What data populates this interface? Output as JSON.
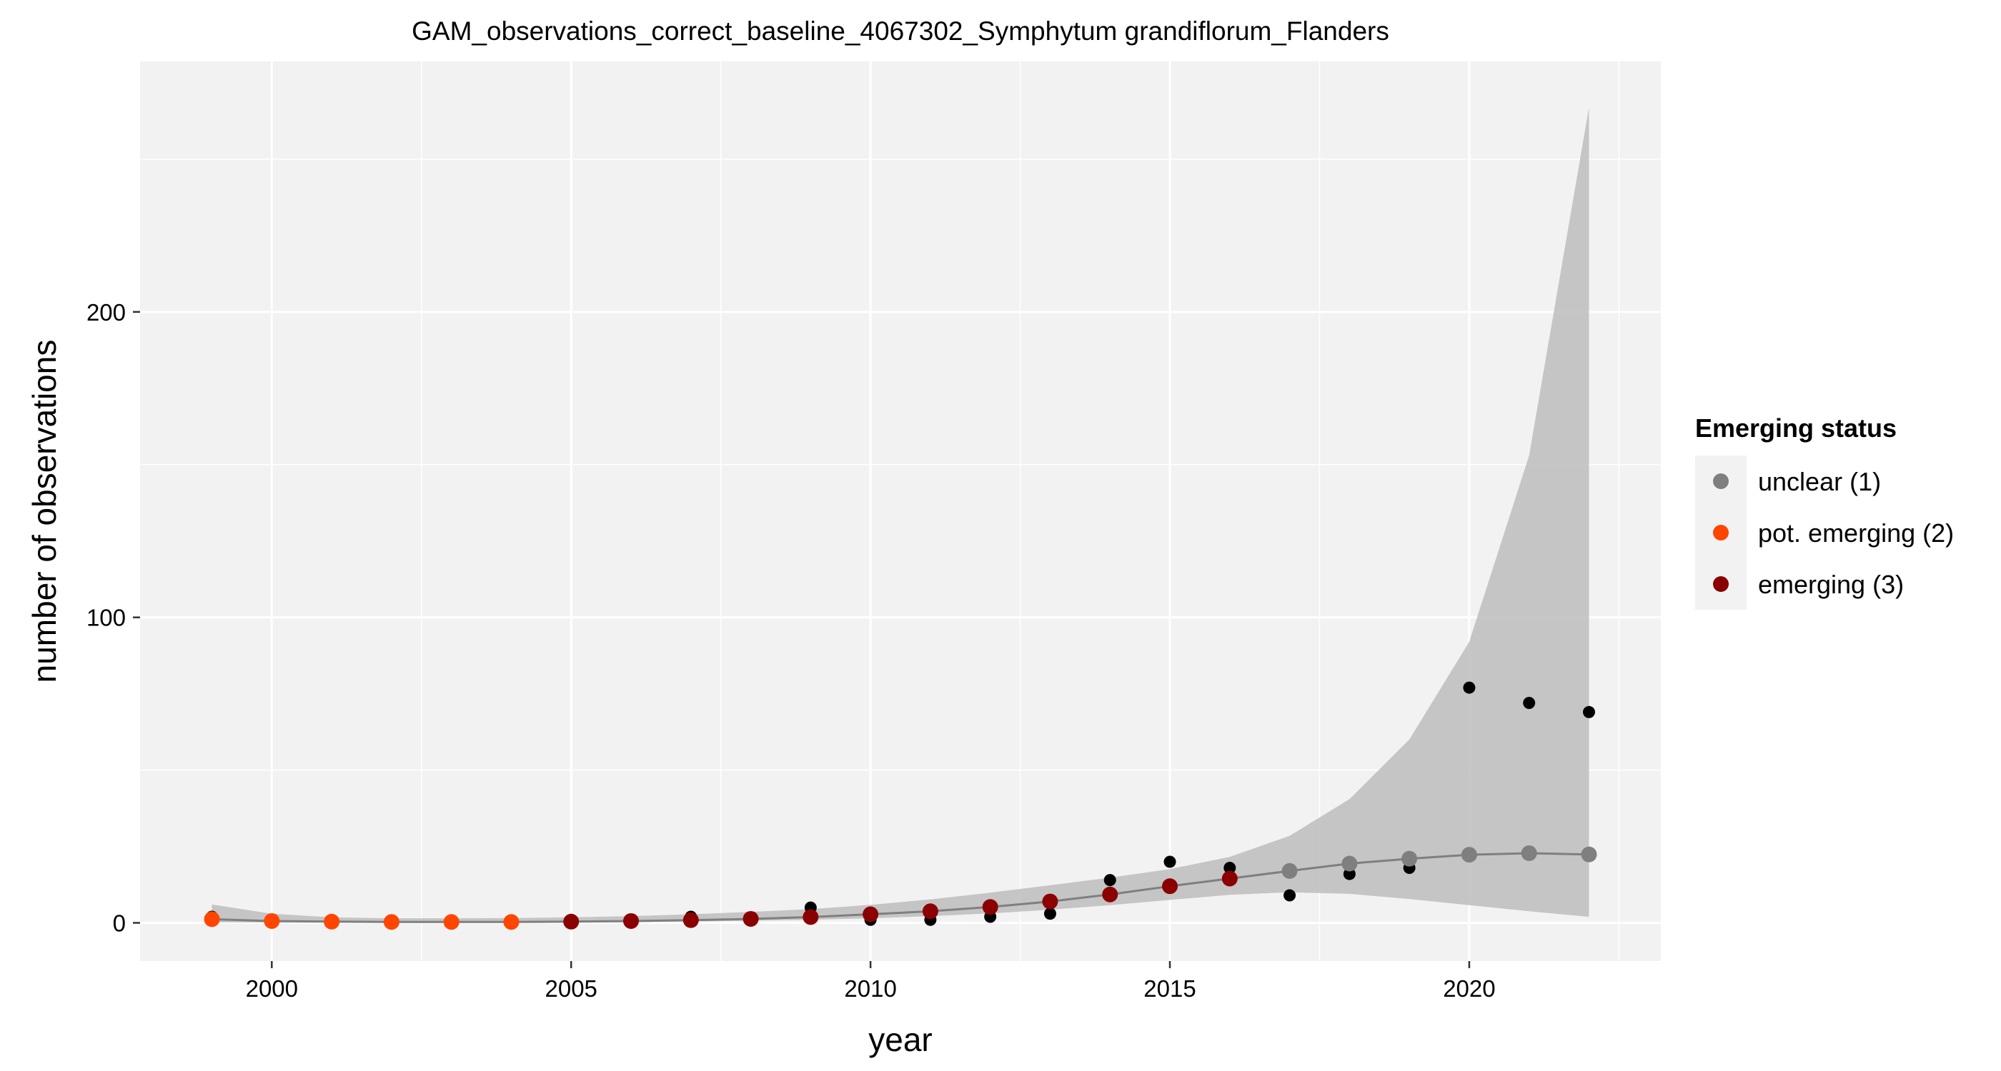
{
  "chart_data": {
    "type": "scatter",
    "title": "GAM_observations_correct_baseline_4067302_Symphytum grandiflorum_Flanders",
    "xlabel": "year",
    "ylabel": "number of observations",
    "xlim": [
      1997.8,
      2023.2
    ],
    "ylim": [
      -12.5,
      282
    ],
    "x_ticks": [
      2000,
      2005,
      2010,
      2015,
      2020
    ],
    "y_ticks": [
      0,
      100,
      200
    ],
    "grid": true,
    "legend": {
      "title": "Emerging status",
      "position": "right",
      "entries": [
        {
          "label": "unclear (1)",
          "color": "#7f7f7f"
        },
        {
          "label": "pot. emerging (2)",
          "color": "#ff4500"
        },
        {
          "label": "emerging (3)",
          "color": "#8b0000"
        }
      ]
    },
    "colors": {
      "panel": "#f2f2f2",
      "grid": "#ffffff",
      "ribbon": "#bdbdbd",
      "fit_line": "#7f7f7f",
      "observed": "#000000"
    },
    "observed": {
      "x": [
        1999,
        2000,
        2001,
        2002,
        2003,
        2004,
        2005,
        2006,
        2007,
        2008,
        2009,
        2010,
        2011,
        2012,
        2013,
        2014,
        2015,
        2016,
        2017,
        2018,
        2019,
        2020,
        2021,
        2022
      ],
      "y": [
        2,
        1,
        0,
        0,
        0,
        0,
        0,
        1,
        2,
        1,
        5,
        1,
        1,
        2,
        3,
        14,
        20,
        18,
        9,
        16,
        18,
        77,
        72,
        69
      ]
    },
    "fit": {
      "x": [
        1999,
        2000,
        2001,
        2002,
        2003,
        2004,
        2005,
        2006,
        2007,
        2008,
        2009,
        2010,
        2011,
        2012,
        2013,
        2014,
        2015,
        2016,
        2017,
        2018,
        2019,
        2020,
        2021,
        2022
      ],
      "y": [
        1.2,
        0.6,
        0.4,
        0.3,
        0.3,
        0.3,
        0.4,
        0.6,
        0.9,
        1.3,
        1.9,
        2.8,
        3.8,
        5.2,
        7.0,
        9.3,
        12.0,
        14.5,
        17.0,
        19.4,
        21.0,
        22.3,
        22.8,
        22.4
      ],
      "status": [
        "pot. emerging",
        "pot. emerging",
        "pot. emerging",
        "pot. emerging",
        "pot. emerging",
        "pot. emerging",
        "emerging",
        "emerging",
        "emerging",
        "emerging",
        "emerging",
        "emerging",
        "emerging",
        "emerging",
        "emerging",
        "emerging",
        "emerging",
        "emerging",
        "unclear",
        "unclear",
        "unclear",
        "unclear",
        "unclear",
        "unclear"
      ],
      "lower": [
        0.2,
        0.1,
        0.1,
        0.1,
        0.1,
        0.1,
        0.1,
        0.2,
        0.4,
        0.7,
        1.0,
        1.5,
        2.2,
        3.1,
        4.3,
        5.8,
        7.5,
        9.2,
        10.0,
        9.5,
        7.8,
        5.8,
        3.8,
        2.0
      ],
      "upper": [
        6.0,
        3.0,
        1.8,
        1.5,
        1.5,
        1.6,
        1.8,
        2.2,
        2.8,
        3.6,
        4.5,
        5.9,
        7.7,
        9.9,
        12.3,
        14.8,
        17.6,
        21.6,
        28.5,
        40.5,
        60.0,
        92.0,
        153.0,
        267.0
      ]
    }
  }
}
